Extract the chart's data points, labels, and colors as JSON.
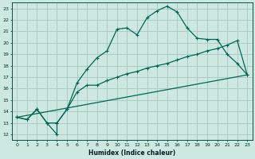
{
  "xlabel": "Humidex (Indice chaleur)",
  "bg_color": "#cce8e0",
  "grid_color": "#aaccc4",
  "line_color": "#006655",
  "xlim": [
    -0.5,
    23.5
  ],
  "ylim": [
    11.5,
    23.5
  ],
  "xticks": [
    0,
    1,
    2,
    3,
    4,
    5,
    6,
    7,
    8,
    9,
    10,
    11,
    12,
    13,
    14,
    15,
    16,
    17,
    18,
    19,
    20,
    21,
    22,
    23
  ],
  "yticks": [
    12,
    13,
    14,
    15,
    16,
    17,
    18,
    19,
    20,
    21,
    22,
    23
  ],
  "line1_x": [
    0,
    1,
    2,
    3,
    4,
    4,
    5,
    6,
    7,
    8,
    9,
    10,
    11,
    12,
    13,
    14,
    15,
    16,
    17,
    18,
    19,
    20,
    21,
    22,
    23
  ],
  "line1_y": [
    13.5,
    13.3,
    14.2,
    13.0,
    12.0,
    13.0,
    14.2,
    16.5,
    17.7,
    18.7,
    19.3,
    21.2,
    21.3,
    20.7,
    22.2,
    22.8,
    23.2,
    22.7,
    21.3,
    20.4,
    20.3,
    20.3,
    19.0,
    18.2,
    17.2
  ],
  "line2_x": [
    0,
    1,
    2,
    3,
    4,
    5,
    6,
    7,
    8,
    9,
    10,
    11,
    12,
    13,
    14,
    15,
    16,
    17,
    18,
    19,
    20,
    21,
    22,
    23
  ],
  "line2_y": [
    13.5,
    13.3,
    14.2,
    13.0,
    13.0,
    14.2,
    15.7,
    16.3,
    16.3,
    16.7,
    17.0,
    17.3,
    17.5,
    17.8,
    18.0,
    18.2,
    18.5,
    18.8,
    19.0,
    19.3,
    19.5,
    19.8,
    20.2,
    17.2
  ],
  "line3_x": [
    0,
    23
  ],
  "line3_y": [
    13.5,
    17.2
  ]
}
